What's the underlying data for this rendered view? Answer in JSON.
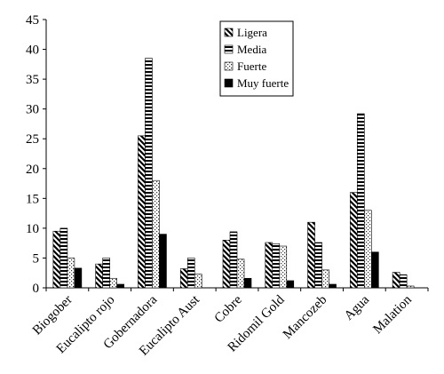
{
  "chart_data": {
    "type": "bar",
    "title": "",
    "xlabel": "",
    "ylabel": "",
    "ylim": [
      0,
      45
    ],
    "yticks": [
      0,
      5,
      10,
      15,
      20,
      25,
      30,
      35,
      40,
      45
    ],
    "grid": false,
    "legend_position": "top-center",
    "categories": [
      "Biogober",
      "Eucalipto rojo",
      "Gobernadora",
      "Eucalipto Aust",
      "Cobre",
      "Ridomil Gold",
      "Mancozeb",
      "Agua",
      "Malation"
    ],
    "series": [
      {
        "name": "Ligera",
        "pattern": "diagonal",
        "values": [
          9.5,
          4.0,
          25.5,
          3.2,
          8.0,
          7.6,
          11.0,
          16.0,
          2.6
        ]
      },
      {
        "name": "Media",
        "pattern": "horizontal",
        "values": [
          10.0,
          5.0,
          38.5,
          5.0,
          9.4,
          7.4,
          7.6,
          29.2,
          2.2
        ]
      },
      {
        "name": "Fuerte",
        "pattern": "dots",
        "values": [
          5.0,
          1.6,
          18.0,
          2.3,
          4.8,
          7.0,
          3.0,
          13.0,
          0.3
        ]
      },
      {
        "name": "Muy fuerte",
        "pattern": "solid",
        "values": [
          3.3,
          0.6,
          9.0,
          0.0,
          1.6,
          1.2,
          0.6,
          6.0,
          0.0
        ]
      }
    ]
  }
}
